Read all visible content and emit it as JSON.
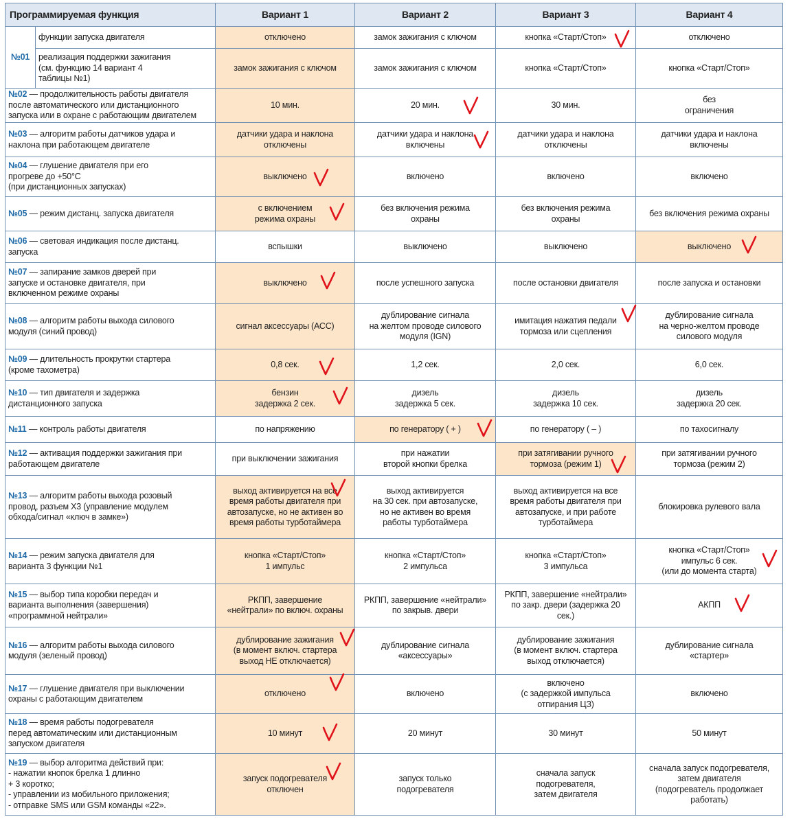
{
  "header": {
    "function": "Программируемая функция",
    "variants": [
      "Вариант 1",
      "Вариант 2",
      "Вариант 3",
      "Вариант 4"
    ]
  },
  "row01": {
    "num": "№01",
    "sub": [
      {
        "desc": "функции запуска двигателя",
        "cells": [
          "отключено",
          "замок зажигания с ключом",
          "кнопка «Старт/Стоп»",
          "отключено"
        ],
        "selected": 1
      },
      {
        "desc": "реализация поддержки зажигания\n(см. функцию 14 вариант 4\nтаблицы №1)",
        "cells": [
          "замок зажигания с ключом",
          "замок зажигания с ключом",
          "кнопка «Старт/Стоп»",
          "кнопка «Старт/Стоп»"
        ],
        "selected": 1
      }
    ]
  },
  "rows": [
    {
      "num": "№02",
      "desc": "продолжительность работы двигателя\nпосле автоматического или дистанционного\nзапуска или в охране с работающим двигателем",
      "cells": [
        "10 мин.",
        "20 мин.",
        "30 мин.",
        "без\nограничения"
      ],
      "selected": 1
    },
    {
      "num": "№03",
      "desc": "алгоритм работы датчиков удара и\nнаклона при работающем двигателе",
      "cells": [
        "датчики удара и наклона\nотключены",
        "датчики удара и наклона\nвключены",
        "датчики удара и наклона\nотключены",
        "датчики удара и наклона\nвключены"
      ],
      "selected": 1
    },
    {
      "num": "№04",
      "desc": "глушение двигателя при его\nпрогреве до +50°С\n(при дистанционных запусках)",
      "cells": [
        "выключено",
        "включено",
        "включено",
        "включено"
      ],
      "selected": 1
    },
    {
      "num": "№05",
      "desc": "режим дистанц. запуска двигателя",
      "cells": [
        "с включением\nрежима охраны",
        "без включения режима\nохраны",
        "без включения режима\nохраны",
        "без включения режима охраны"
      ],
      "selected": 1
    },
    {
      "num": "№06",
      "desc": "световая индикация после дистанц.\nзапуска",
      "cells": [
        "вспышки",
        "выключено",
        "выключено",
        "выключено"
      ],
      "selected": 4
    },
    {
      "num": "№07",
      "desc": "запирание замков дверей при\nзапуске и остановке двигателя, при\nвключенном режиме охраны",
      "cells": [
        "выключено",
        "после успешного запуска",
        "после остановки двигателя",
        "после запуска и остановки"
      ],
      "selected": 1
    },
    {
      "num": "№08",
      "desc": "алгоритм работы выхода силового\nмодуля (синий провод)",
      "cells": [
        "сигнал аксессуары (АСС)",
        "дублирование сигнала\nна желтом проводе силового\nмодуля (IGN)",
        "имитация нажатия педали\nтормоза или сцепления",
        "дублирование сигнала\nна черно-желтом проводе\nсилового модуля"
      ],
      "selected": 1
    },
    {
      "num": "№09",
      "desc": "длительность прокрутки стартера\n(кроме тахометра)",
      "cells": [
        "0,8 сек.",
        "1,2 сек.",
        "2,0 сек.",
        "6,0 сек."
      ],
      "selected": 1
    },
    {
      "num": "№10",
      "desc": "тип двигателя и задержка\nдистанционного запуска",
      "cells": [
        "бензин\nзадержка 2 сек.",
        "дизель\nзадержка 5 сек.",
        "дизель\nзадержка 10 сек.",
        "дизель\nзадержка 20 сек."
      ],
      "selected": 1
    },
    {
      "num": "№11",
      "desc": "контроль  работы двигателя",
      "cells": [
        "по напряжению",
        "по генератору ( + )",
        "по генератору ( – )",
        "по тахосигналу"
      ],
      "selected": 2
    },
    {
      "num": "№12",
      "desc": "активация поддержки зажигания при\nработающем двигателе",
      "cells": [
        "при выключении зажигания",
        "при нажатии\nвторой кнопки брелка",
        "при затягивании ручного\nтормоза (режим 1)",
        "при затягивании ручного\nтормоза (режим 2)"
      ],
      "selected": 3
    },
    {
      "num": "№13",
      "desc": "алгоритм работы выхода розовый\nпровод, разъем Х3 (управление модулем\nобхода/сигнал «ключ в замке»)",
      "cells": [
        "выход активируется на все\nвремя работы двигателя при\nавтозапуске, но не активен во\nвремя работы турботаймера",
        "выход активируется\nна 30 сек. при автозапуске,\nно не активен во время\nработы турботаймера",
        "выход активируется на все\nвремя работы двигателя при\nавтозапуске, и при работе\nтурботаймера",
        "блокировка рулевого вала"
      ],
      "selected": 1
    },
    {
      "num": "№14",
      "desc": "режим запуска двигателя для\nварианта 3 функции №1",
      "cells": [
        "кнопка «Старт/Стоп»\n1 импульс",
        "кнопка «Старт/Стоп»\n2 импульса",
        "кнопка «Старт/Стоп»\n3 импульса",
        "кнопка «Старт/Стоп»\nимпульс 6 сек.\n(или до момента старта)"
      ],
      "selected": 1
    },
    {
      "num": "№15",
      "desc": "выбор типа коробки  передач и\nварианта выполнения (завершения)\n«программной нейтрали»",
      "cells": [
        "РКПП, завершение\n«нейтрали» по включ. охраны",
        "РКПП, завершение «нейтрали»\nпо закрыв. двери",
        "РКПП, завершение «нейтрали»\nпо закр. двери (задержка 20\nсек.)",
        "АКПП"
      ],
      "selected": 1
    },
    {
      "num": "№16",
      "desc": "алгоритм работы выхода силового\nмодуля (зеленый провод)",
      "cells": [
        "дублирование зажигания\n(в момент включ. стартера\nвыход НЕ отключается)",
        "дублирование сигнала\n«аксессуары»",
        "дублирование зажигания\n(в момент включ. стартера\nвыход отключается)",
        "дублирование сигнала\n«стартер»"
      ],
      "selected": 1
    },
    {
      "num": "№17",
      "desc": "глушение двигателя при выключении\nохраны с работающим двигателем",
      "cells": [
        "отключено",
        "включено",
        "включено\n(с задержкой импульса\nотпирания ЦЗ)",
        "включено"
      ],
      "selected": 1
    },
    {
      "num": "№18",
      "desc": "время работы подогревателя\nперед автоматическим или дистанционным\nзапуском двигателя",
      "cells": [
        "10 минут",
        "20 минут",
        "30 минут",
        "50 минут"
      ],
      "selected": 1
    },
    {
      "num": "№19",
      "desc": "выбор алгоритма действий при:\n- нажатии кнопок брелка 1 длинно\n  + 3 коротко;\n- управлении из мобильного приложения;\n- отправке SMS или GSM команды «22».",
      "cells": [
        "запуск подогревателя\nотключен",
        "запуск только\nподогревателя",
        "сначала запуск\nподогревателя,\nзатем двигателя",
        "сначала запуск подогревателя,\nзатем двигателя\n(подогреватель продолжает\nработать)"
      ],
      "selected": 1
    }
  ],
  "separator": " — ",
  "colors": {
    "highlight": "#fde5c9",
    "header_bg": "#dfe8f2",
    "border": "#6f8fb3",
    "number": "#1e6aa8",
    "check_mark": "#e0121a"
  },
  "check_marks": [
    {
      "row": "№01",
      "variant": 3
    },
    {
      "row": "№02",
      "variant": 2
    },
    {
      "row": "№03",
      "variant": 2
    },
    {
      "row": "№04",
      "variant": 1
    },
    {
      "row": "№05",
      "variant": 1
    },
    {
      "row": "№06",
      "variant": 4
    },
    {
      "row": "№07",
      "variant": 1
    },
    {
      "row": "№08",
      "variant": 3
    },
    {
      "row": "№09",
      "variant": 1
    },
    {
      "row": "№10",
      "variant": 1
    },
    {
      "row": "№11",
      "variant": 2
    },
    {
      "row": "№12",
      "variant": 3
    },
    {
      "row": "№13",
      "variant": 1
    },
    {
      "row": "№14",
      "variant": 4
    },
    {
      "row": "№15",
      "variant": 4
    },
    {
      "row": "№16",
      "variant": 1
    },
    {
      "row": "№17",
      "variant": 1
    },
    {
      "row": "№18",
      "variant": 1
    },
    {
      "row": "№19",
      "variant": 1
    }
  ]
}
